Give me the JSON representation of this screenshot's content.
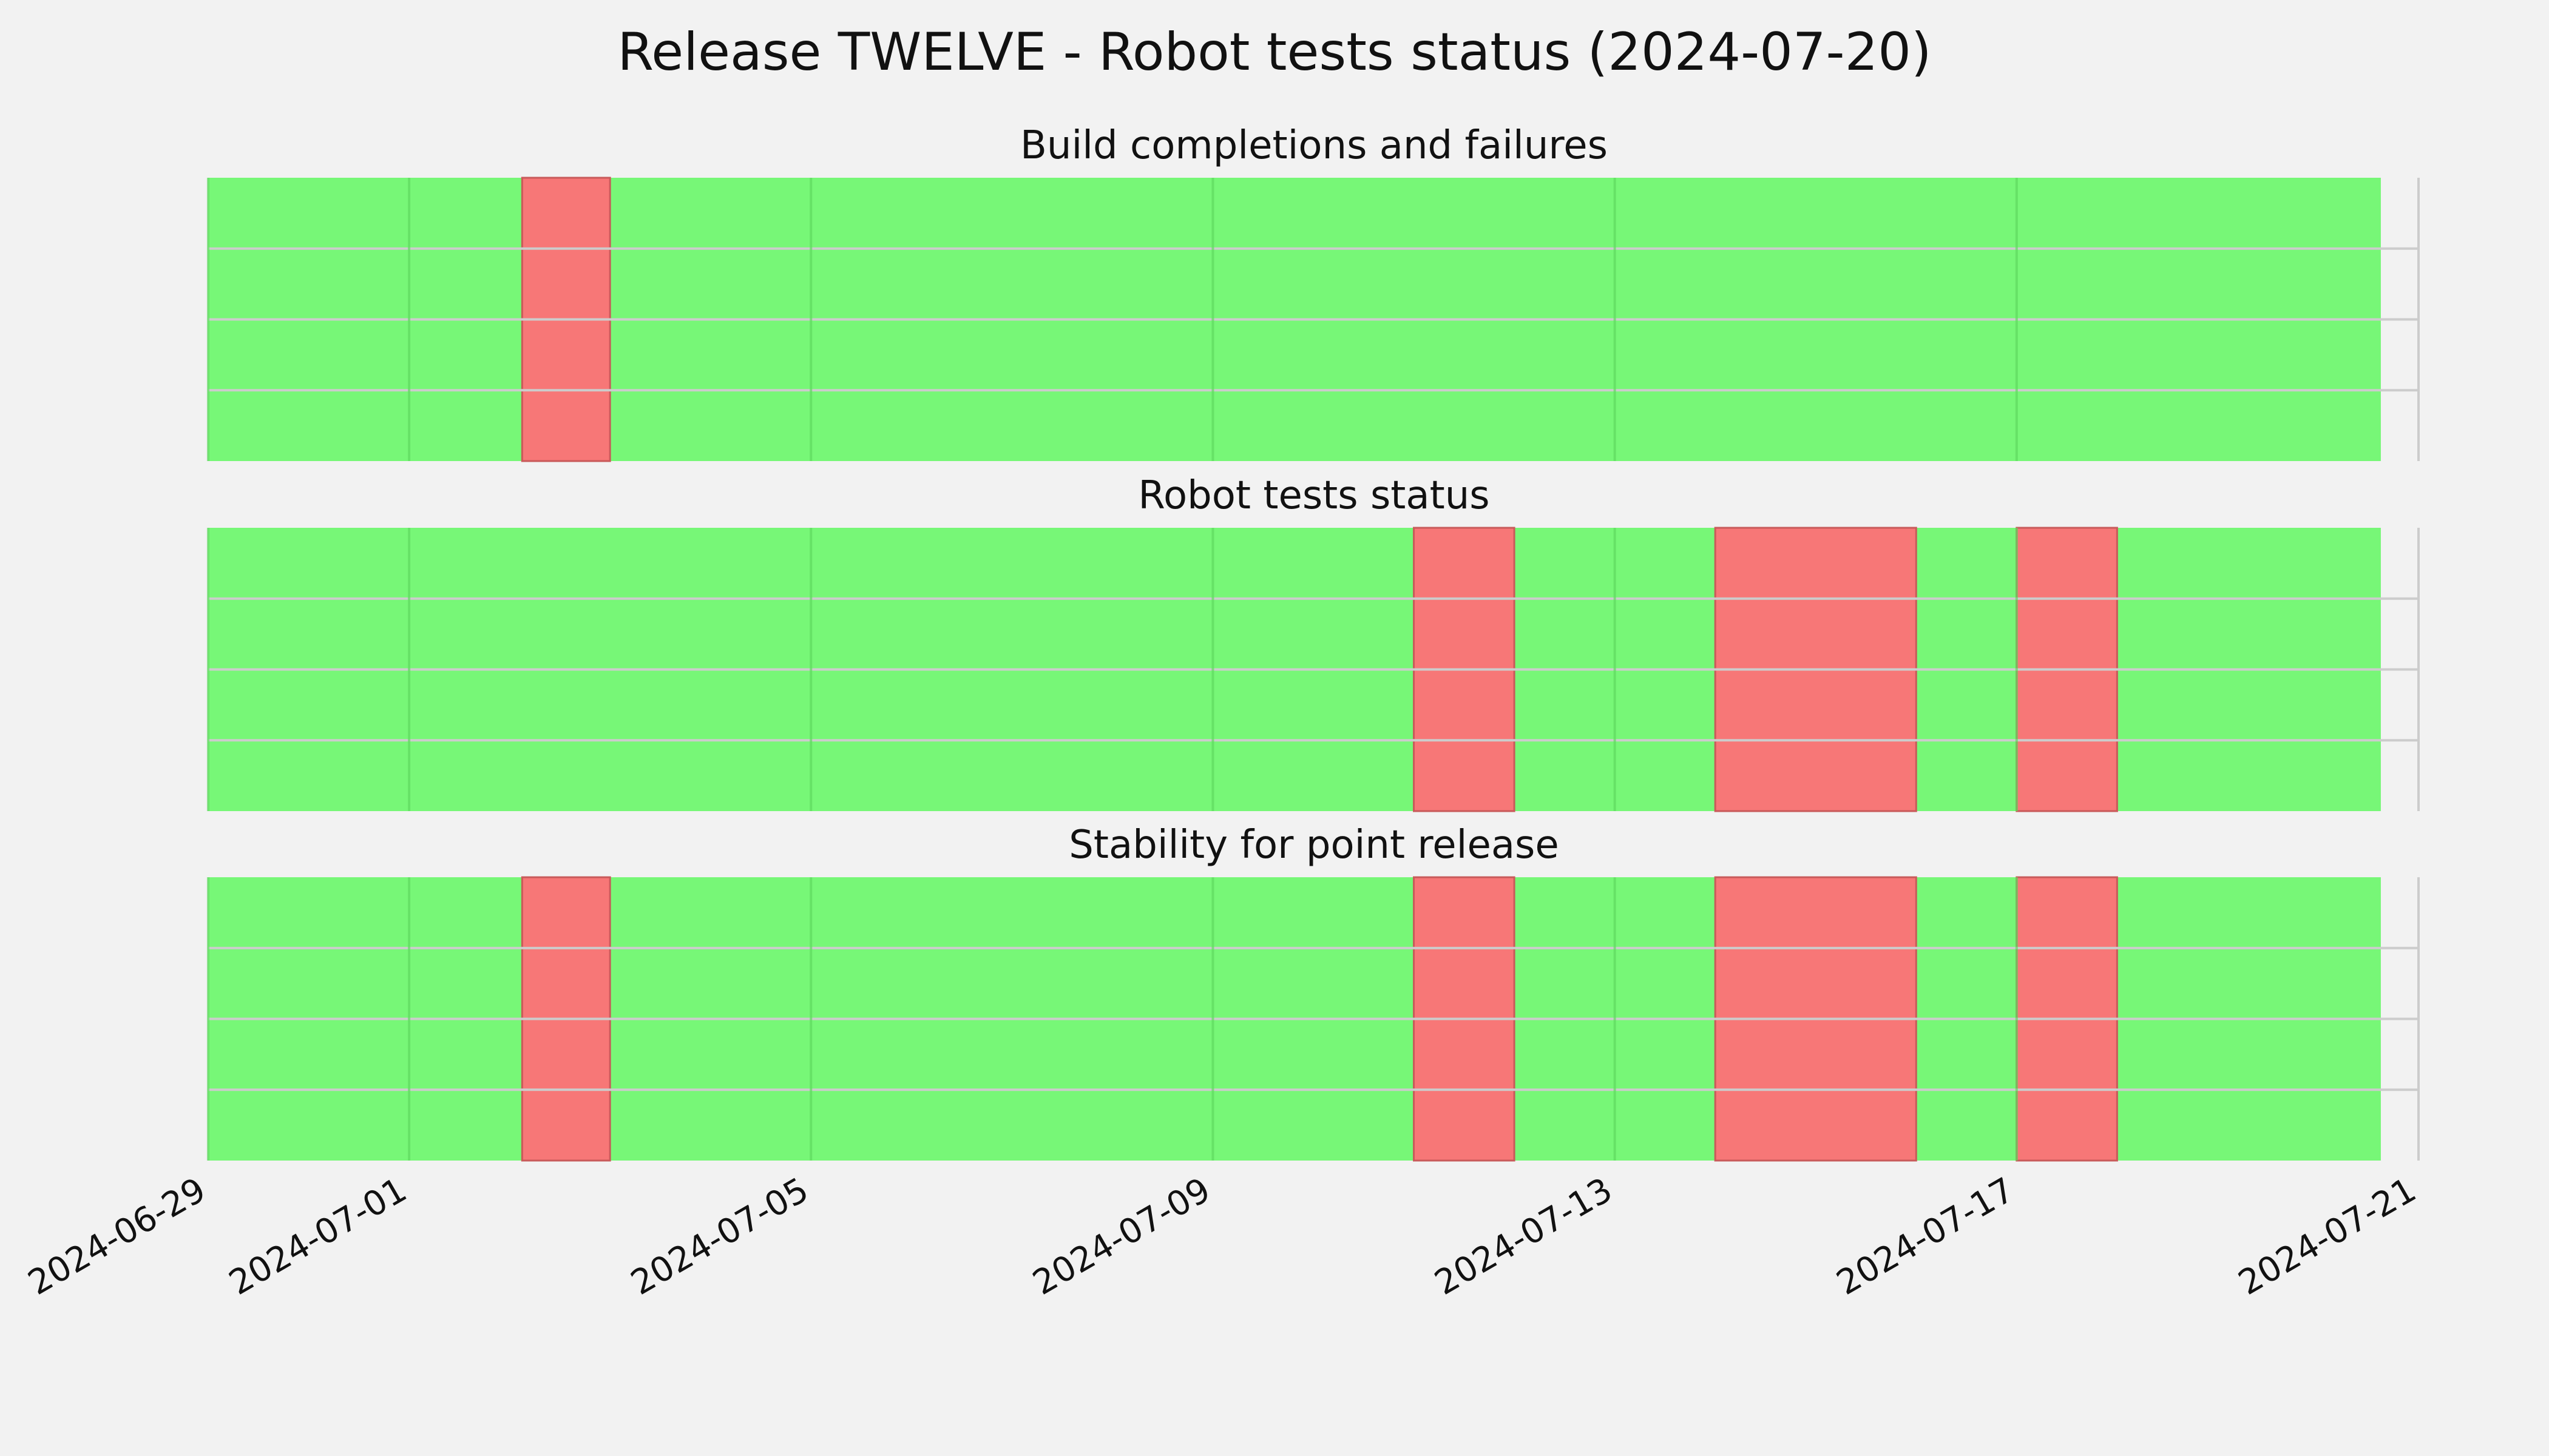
{
  "title": "Release TWELVE - Robot tests status (2024-07-20)",
  "chart_data": {
    "type": "area",
    "x_type": "date",
    "xlim": [
      "2024-06-29",
      "2024-07-21"
    ],
    "x_ticks": [
      "2024-06-29",
      "2024-07-01",
      "2024-07-05",
      "2024-07-09",
      "2024-07-13",
      "2024-07-17",
      "2024-07-21"
    ],
    "data_end": "2024-07-20 15:00",
    "ylim": [
      0,
      1
    ],
    "colors": {
      "pass": "#77f777",
      "fail": "#f77777",
      "background": "#f2f2f2",
      "grid": "#cccccc"
    },
    "grid": true,
    "panels": [
      {
        "title": "Build completions and failures",
        "fail_periods": [
          {
            "start": "2024-07-02 03:00",
            "end": "2024-07-03 00:00"
          }
        ]
      },
      {
        "title": "Robot tests status",
        "fail_periods": [
          {
            "start": "2024-07-11 00:00",
            "end": "2024-07-12 00:00"
          },
          {
            "start": "2024-07-14 00:00",
            "end": "2024-07-16 00:00"
          },
          {
            "start": "2024-07-17 00:00",
            "end": "2024-07-18 00:00"
          }
        ]
      },
      {
        "title": "Stability for point release",
        "fail_periods": [
          {
            "start": "2024-07-02 03:00",
            "end": "2024-07-03 00:00"
          },
          {
            "start": "2024-07-11 00:00",
            "end": "2024-07-12 00:00"
          },
          {
            "start": "2024-07-14 00:00",
            "end": "2024-07-16 00:00"
          },
          {
            "start": "2024-07-17 00:00",
            "end": "2024-07-18 00:00"
          }
        ]
      }
    ]
  }
}
